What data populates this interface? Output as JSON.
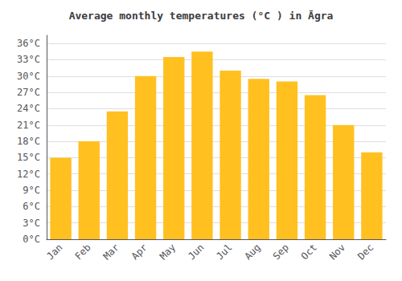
{
  "chart_data": {
    "type": "bar",
    "title": "Average monthly temperatures (°C ) in Āgra",
    "categories": [
      "Jan",
      "Feb",
      "Mar",
      "Apr",
      "May",
      "Jun",
      "Jul",
      "Aug",
      "Sep",
      "Oct",
      "Nov",
      "Dec"
    ],
    "values": [
      15,
      18,
      23.5,
      30,
      33.5,
      34.5,
      31,
      29.5,
      29,
      26.5,
      21,
      16
    ],
    "color": "#FFC020",
    "ylim": [
      0,
      37.5
    ],
    "yticks": [
      {
        "value": 0,
        "label": "0°C"
      },
      {
        "value": 3,
        "label": "3°C"
      },
      {
        "value": 6,
        "label": "6°C"
      },
      {
        "value": 9,
        "label": "9°C"
      },
      {
        "value": 12,
        "label": "12°C"
      },
      {
        "value": 15,
        "label": "15°C"
      },
      {
        "value": 18,
        "label": "18°C"
      },
      {
        "value": 21,
        "label": "21°C"
      },
      {
        "value": 24,
        "label": "24°C"
      },
      {
        "value": 27,
        "label": "27°C"
      },
      {
        "value": 30,
        "label": "30°C"
      },
      {
        "value": 33,
        "label": "33°C"
      },
      {
        "value": 36,
        "label": "36°C"
      }
    ],
    "grid": true
  }
}
